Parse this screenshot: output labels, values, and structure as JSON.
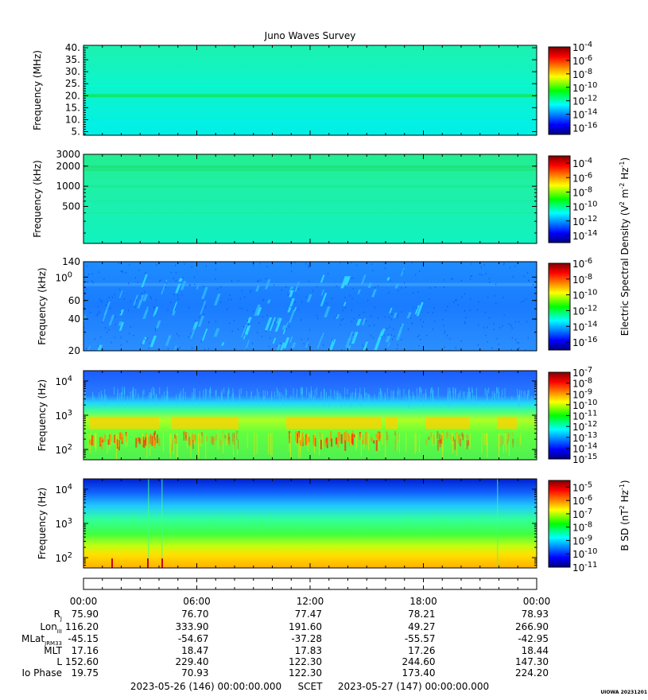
{
  "chart_data": {
    "type": "heatmap",
    "title": "Juno Waves Survey",
    "time_ticks": [
      "00:00",
      "06:00",
      "12:00",
      "18:00",
      "00:00"
    ],
    "panels": [
      {
        "ylabel": "Frequency (MHz)",
        "yticks": [
          "5.",
          "10.",
          "15.",
          "20.",
          "25.",
          "30.",
          "35.",
          "40."
        ],
        "ytick_values": [
          5,
          10,
          15,
          20,
          25,
          30,
          35,
          40
        ],
        "yscale": "linear",
        "ylim": [
          3.5,
          41
        ],
        "colorbar_ticks": [
          "10-4",
          "10-6",
          "10-8",
          "10-10",
          "10-12",
          "10-14",
          "10-16"
        ],
        "color_range_exp": [
          -17,
          -4
        ]
      },
      {
        "ylabel": "Frequency (kHz)",
        "yticks": [
          "500",
          "1000",
          "2000",
          "3000"
        ],
        "ytick_values": [
          500,
          1000,
          2000,
          3000
        ],
        "yscale": "log",
        "ylim": [
          140,
          3000
        ],
        "colorbar_ticks": [
          "10-4",
          "10-6",
          "10-8",
          "10-10",
          "10-12",
          "10-14"
        ],
        "color_range_exp": [
          -15,
          -3
        ]
      },
      {
        "ylabel": "Frequency (kHz)",
        "yticks": [
          "20",
          "40",
          "60",
          "100",
          "140"
        ],
        "ytick_values": [
          20,
          40,
          60,
          100,
          140
        ],
        "yscale": "log",
        "ylim": [
          20,
          140
        ],
        "colorbar_ticks": [
          "10-6",
          "10-8",
          "10-10",
          "10-12",
          "10-14",
          "10-16"
        ],
        "color_range_exp": [
          -17,
          -6
        ]
      },
      {
        "ylabel": "Frequency (Hz)",
        "yticks": [
          "102",
          "103",
          "104"
        ],
        "ytick_values": [
          100,
          1000,
          10000
        ],
        "yscale": "log",
        "ylim": [
          50,
          20000
        ],
        "colorbar_ticks": [
          "10-7",
          "10-8",
          "10-9",
          "10-10",
          "10-11",
          "10-12",
          "10-13",
          "10-14",
          "10-15"
        ],
        "color_range_exp": [
          -15,
          -7
        ]
      },
      {
        "ylabel": "Frequency (Hz)",
        "yticks": [
          "102",
          "103",
          "104"
        ],
        "ytick_values": [
          100,
          1000,
          10000
        ],
        "yscale": "log",
        "ylim": [
          50,
          20000
        ],
        "colorbar_ticks": [
          "10-5",
          "10-6",
          "10-7",
          "10-8",
          "10-9",
          "10-10",
          "10-11"
        ],
        "color_range_exp": [
          -11,
          -4.5
        ]
      }
    ],
    "colorbar_label_electric": "Electric Spectral Density (V2 m-2 Hz-1)",
    "colorbar_label_magnetic": "B SD (nT2 Hz-1)",
    "ephemeris": {
      "rows": [
        {
          "label": "Rj",
          "values": [
            "75.90",
            "76.70",
            "77.47",
            "78.21",
            "78.93"
          ]
        },
        {
          "label": "LonIII",
          "values": [
            "116.20",
            "333.90",
            "191.60",
            "49.27",
            "266.90"
          ]
        },
        {
          "label": "MLatJRM33",
          "values": [
            "-45.15",
            "-54.67",
            "-37.28",
            "-55.57",
            "-42.95"
          ]
        },
        {
          "label": "MLT",
          "values": [
            "17.16",
            "18.47",
            "17.83",
            "17.26",
            "18.44"
          ]
        },
        {
          "label": "L",
          "values": [
            "152.60",
            "229.40",
            "122.30",
            "244.60",
            "147.30"
          ]
        },
        {
          "label": "Io Phase",
          "values": [
            "19.75",
            "70.93",
            "122.30",
            "173.40",
            "224.20"
          ]
        }
      ]
    },
    "footer": {
      "start": "2023-05-26 (146) 00:00:00.000",
      "scet": "SCET",
      "end": "2023-05-27 (147) 00:00:00.000",
      "stamp": "UIOWA 20231201"
    }
  }
}
